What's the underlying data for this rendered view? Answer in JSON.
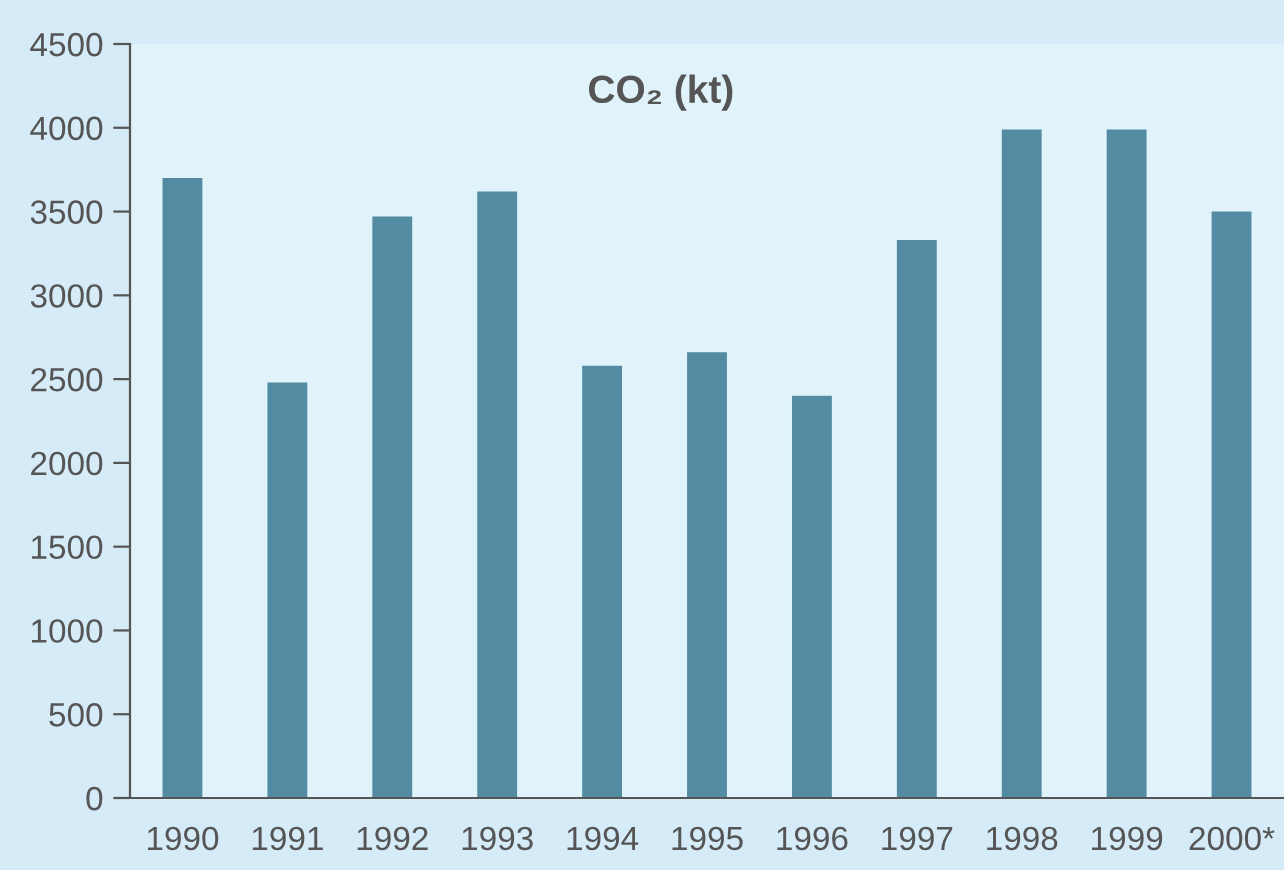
{
  "chart_data": {
    "type": "bar",
    "title": "CO₂ (kt)",
    "categories": [
      "1990",
      "1991",
      "1992",
      "1993",
      "1994",
      "1995",
      "1996",
      "1997",
      "1998",
      "1999",
      "2000*"
    ],
    "values": [
      3700,
      2480,
      3470,
      3620,
      2580,
      2660,
      2400,
      3330,
      3990,
      3990,
      3500
    ],
    "color": "#538ba3",
    "ylim": [
      0,
      4500
    ],
    "yticks": [
      0,
      500,
      1000,
      1500,
      2000,
      2500,
      3000,
      3500,
      4000,
      4500
    ],
    "grid": false
  }
}
